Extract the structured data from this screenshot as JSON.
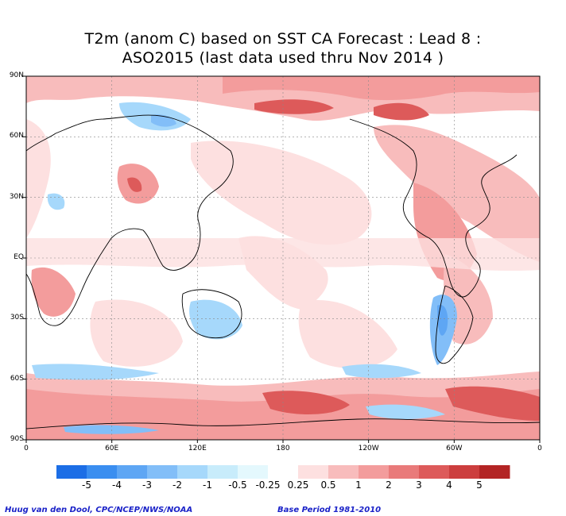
{
  "title_line1": "T2m (anom C) based on SST CA Forecast : Lead 8 :",
  "title_line2": "ASO2015 (last data used thru Nov 2014 )",
  "lat_ticks": [
    {
      "label": "90N",
      "lat": 90
    },
    {
      "label": "60N",
      "lat": 60
    },
    {
      "label": "30N",
      "lat": 30
    },
    {
      "label": "EQ",
      "lat": 0
    },
    {
      "label": "30S",
      "lat": -30
    },
    {
      "label": "60S",
      "lat": -60
    },
    {
      "label": "90S",
      "lat": -90
    }
  ],
  "lon_ticks": [
    {
      "label": "0",
      "lon": 0
    },
    {
      "label": "60E",
      "lon": 60
    },
    {
      "label": "120E",
      "lon": 120
    },
    {
      "label": "180",
      "lon": 180
    },
    {
      "label": "120W",
      "lon": 240
    },
    {
      "label": "60W",
      "lon": 300
    },
    {
      "label": "0",
      "lon": 360
    }
  ],
  "colorbar": {
    "colors": [
      "#1c6ee6",
      "#3a8ef0",
      "#5ea6f4",
      "#82bef8",
      "#a6d8fb",
      "#c8ecfb",
      "#e4f8fd",
      "#ffffff",
      "#fde0e0",
      "#f8bcbc",
      "#f39c9c",
      "#e97a7a",
      "#dd5a5a",
      "#cc3e3e",
      "#b32424"
    ],
    "labels": [
      "-5",
      "-4",
      "-3",
      "-2",
      "-1",
      "-0.5",
      "-0.25",
      "0.25",
      "0.5",
      "1",
      "2",
      "3",
      "4",
      "5"
    ]
  },
  "footer_left": "Huug van den Dool, CPC/NCEP/NWS/NOAA",
  "footer_right": "Base Period 1981-2010"
}
